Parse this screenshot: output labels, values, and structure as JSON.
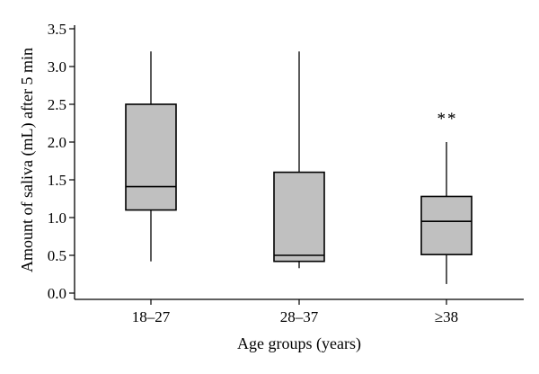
{
  "chart_data": {
    "type": "box",
    "xlabel": "Age groups (years)",
    "ylabel": "Amount of saliva (mL) after 5 min",
    "ylim": [
      0.0,
      3.5
    ],
    "yticks": [
      "0.0",
      "0.5",
      "1.0",
      "1.5",
      "2.0",
      "2.5",
      "3.0",
      "3.5"
    ],
    "categories": [
      "18–27",
      "28–37",
      "≥38"
    ],
    "box_color": "#c0c0c0",
    "boxes": [
      {
        "category": "18–27",
        "min": 0.42,
        "q1": 1.1,
        "median": 1.41,
        "q3": 2.5,
        "max": 3.2,
        "annotation": ""
      },
      {
        "category": "28–37",
        "min": 0.33,
        "q1": 0.42,
        "median": 0.5,
        "q3": 1.6,
        "max": 3.2,
        "annotation": ""
      },
      {
        "category": "≥38",
        "min": 0.12,
        "q1": 0.51,
        "median": 0.95,
        "q3": 1.28,
        "max": 2.0,
        "annotation": "**"
      }
    ]
  }
}
